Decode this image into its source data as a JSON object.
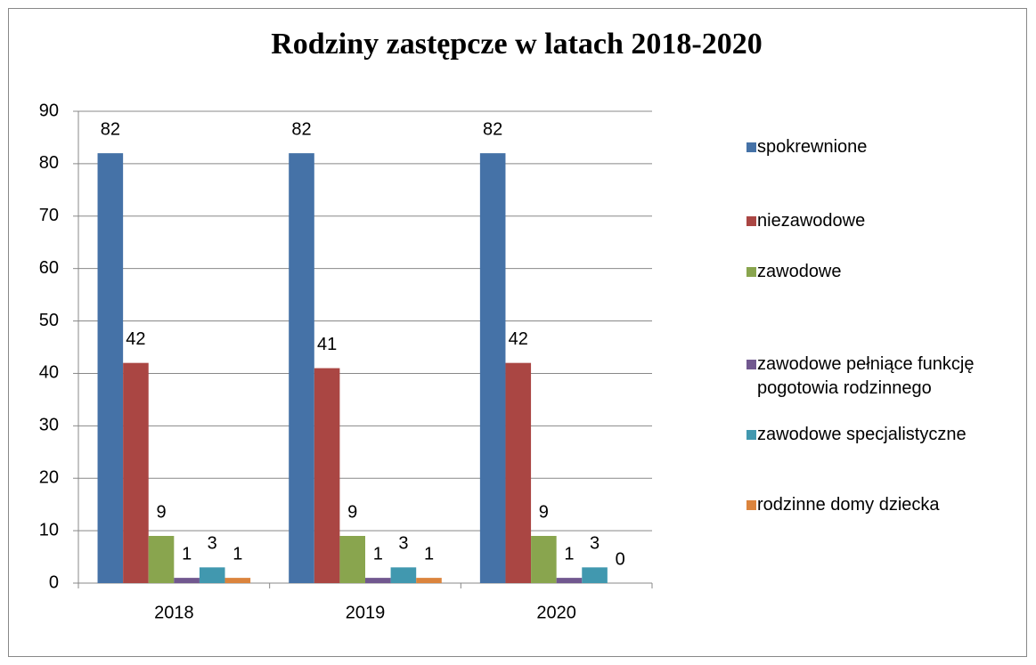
{
  "chart_data": {
    "type": "bar",
    "title": "Rodziny zastępcze w latach 2018-2020",
    "categories": [
      "2018",
      "2019",
      "2020"
    ],
    "series": [
      {
        "name": "spokrewnione",
        "color": "#4572A7",
        "values": [
          82,
          82,
          82
        ]
      },
      {
        "name": "niezawodowe",
        "color": "#AA4643",
        "values": [
          42,
          41,
          42
        ]
      },
      {
        "name": "zawodowe",
        "color": "#89A54E",
        "values": [
          9,
          9,
          9
        ]
      },
      {
        "name": "zawodowe pełniące funkcję pogotowia rodzinnego",
        "color": "#71588F",
        "values": [
          1,
          1,
          1
        ]
      },
      {
        "name": "zawodowe specjalistyczne",
        "color": "#4198AF",
        "values": [
          3,
          3,
          3
        ]
      },
      {
        "name": "rodzinne domy dziecka",
        "color": "#DB843D",
        "values": [
          1,
          1,
          0
        ]
      }
    ],
    "ylim": [
      0,
      90
    ],
    "yticks": [
      0,
      10,
      20,
      30,
      40,
      50,
      60,
      70,
      80,
      90
    ],
    "grid": true,
    "legend": "right"
  }
}
